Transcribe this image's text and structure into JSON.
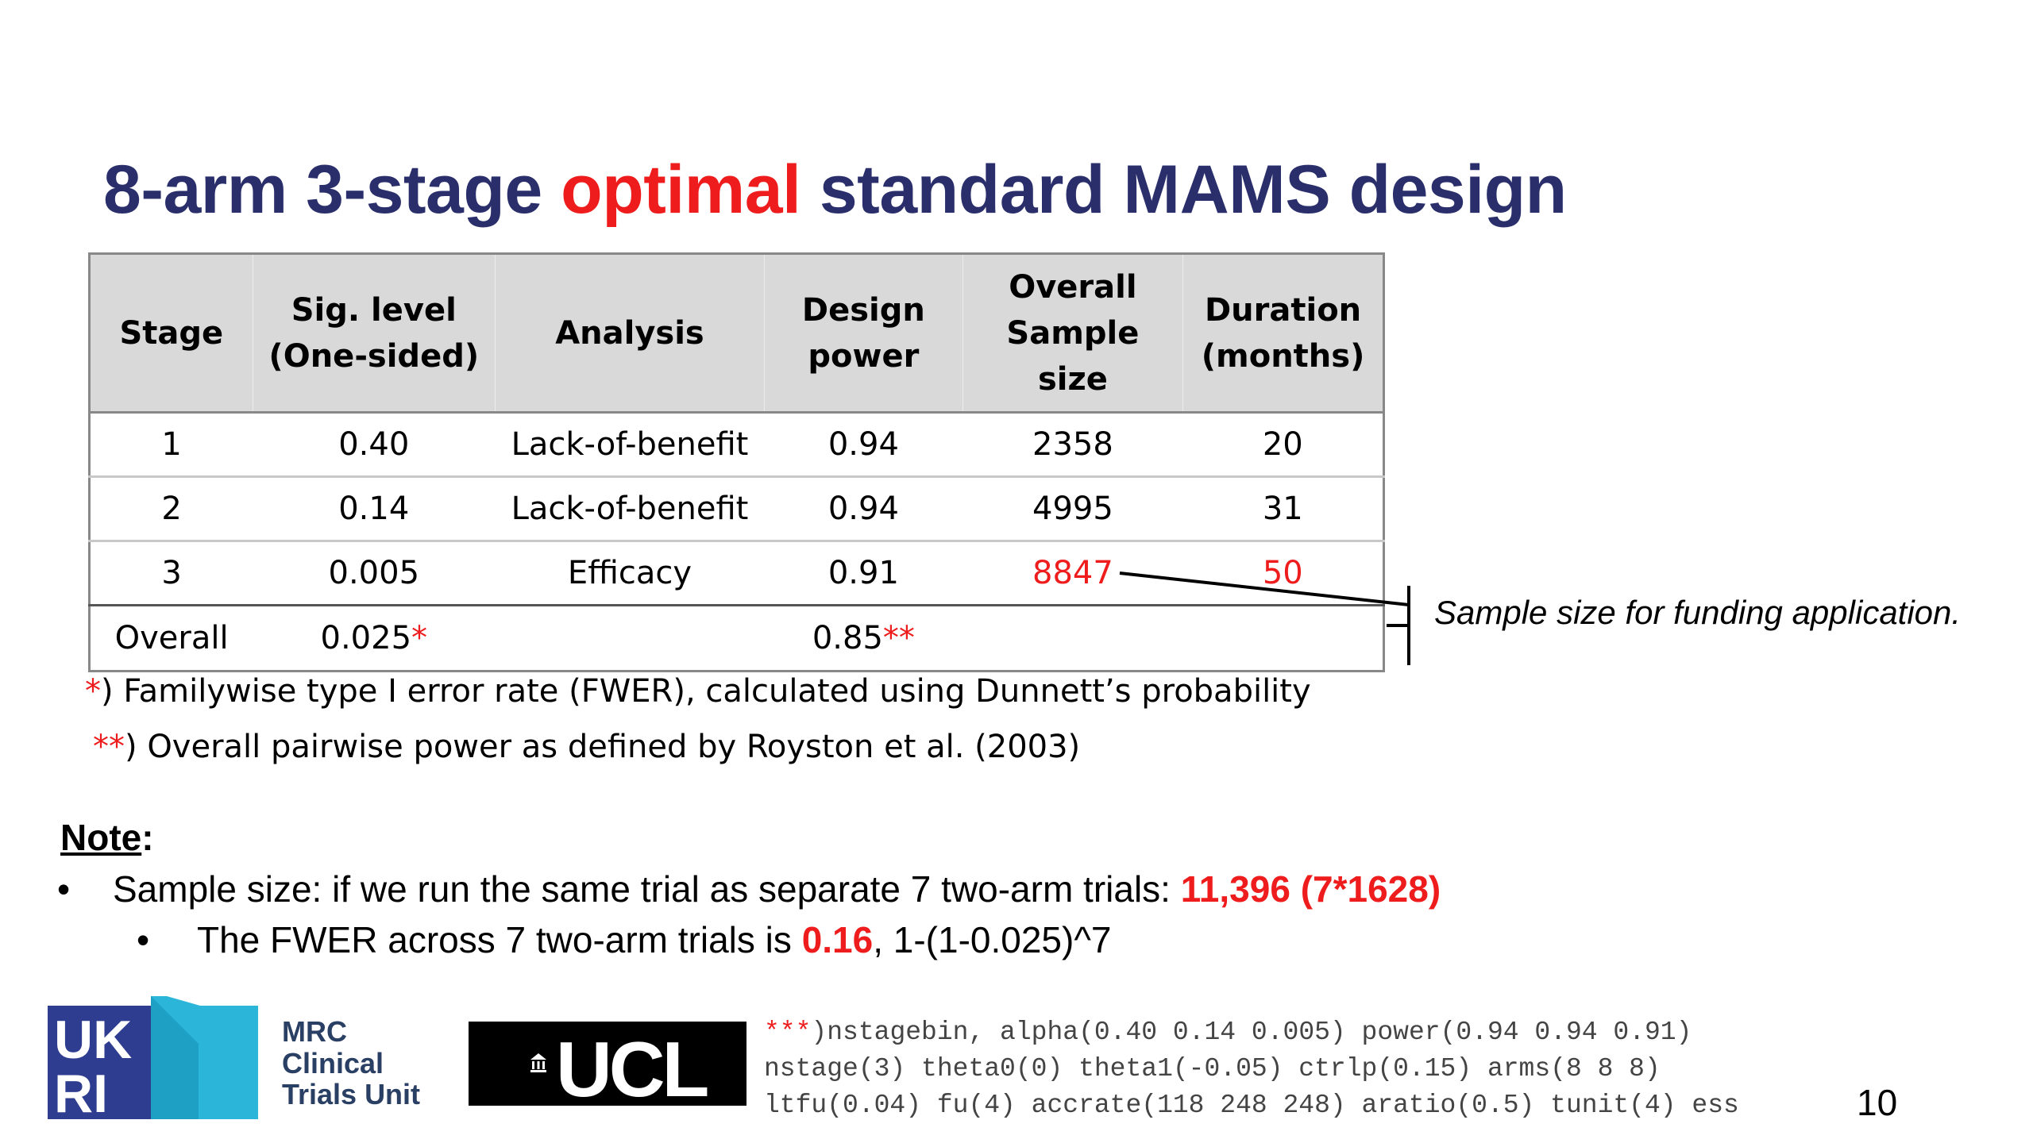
{
  "title": {
    "part1": "8-arm 3-stage ",
    "highlight": "optimal",
    "part2": " standard MAMS design"
  },
  "table": {
    "headers": [
      [
        "Stage"
      ],
      [
        "Sig. level",
        "(One-sided)"
      ],
      [
        "Analysis"
      ],
      [
        "Design",
        "power"
      ],
      [
        "Overall",
        "Sample size"
      ],
      [
        "Duration",
        "(months)"
      ]
    ],
    "rows": [
      {
        "stage": "1",
        "sig": "0.40",
        "analysis": "Lack-of-benefit",
        "power": "0.94",
        "sample": "2358",
        "duration": "20"
      },
      {
        "stage": "2",
        "sig": "0.14",
        "analysis": "Lack-of-benefit",
        "power": "0.94",
        "sample": "4995",
        "duration": "31"
      },
      {
        "stage": "3",
        "sig": "0.005",
        "analysis": "Efficacy",
        "power": "0.91",
        "sample": "8847",
        "duration": "50"
      }
    ],
    "overall": {
      "label": "Overall",
      "sig": "0.025",
      "sig_mark": "*",
      "power": "0.85",
      "power_mark": "**"
    }
  },
  "callout": "Sample size for funding application.",
  "footnotes": {
    "fn1_mark": "*",
    "fn1_text": ") Familywise type I error rate (FWER), calculated using Dunnett’s probability",
    "fn2_mark": "**",
    "fn2_text": ") Overall pairwise power as defined by Royston et al. (2003)"
  },
  "note": {
    "label": "Note",
    "colon": ":",
    "bullet_char": "•",
    "b1_text": "Sample size: if we run the same trial as separate 7 two-arm trials: ",
    "b1_highlight": "11,396 (7*1628)",
    "b2_text": "The FWER across 7 two-arm trials is ",
    "b2_highlight": "0.16",
    "b2_tail": ", 1-(1-0.025)^7"
  },
  "logos": {
    "ukri": "UKRI",
    "mrc_lines": [
      "MRC",
      "Clinical",
      "Trials Unit"
    ],
    "ucl": "UCL"
  },
  "stata": {
    "mark": "***",
    "line1": ")nstagebin, alpha(0.40 0.14 0.005) power(0.94 0.94 0.91)",
    "line2": "nstage(3) theta0(0) theta1(-0.05) ctrlp(0.15) arms(8 8 8)",
    "line3": "ltfu(0.04) fu(4) accrate(118 248 248) aratio(0.5) tunit(4) ess"
  },
  "page_number": "10",
  "colors": {
    "title": "#2a2f6b",
    "accent_red": "#ee1c1c",
    "header_bg": "#d9d9d9",
    "ukri_blue": "#2e3d8f",
    "ukri_teal": "#2bb5d8"
  }
}
